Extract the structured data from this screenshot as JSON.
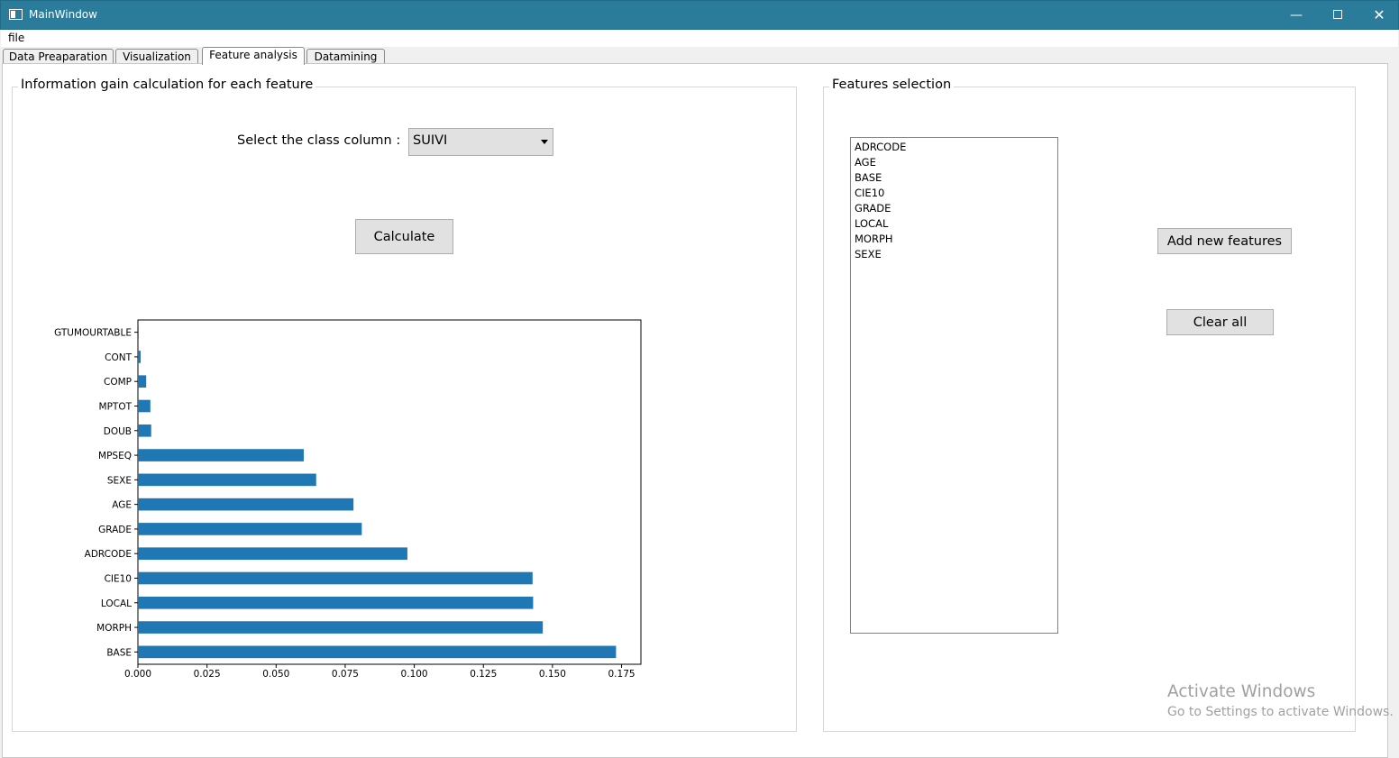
{
  "window": {
    "title": "MainWindow",
    "minimize_glyph": "—",
    "close_glyph": "✕"
  },
  "menubar": {
    "file_label": "file"
  },
  "tabs": [
    {
      "label": "Data Preaparation",
      "active": false
    },
    {
      "label": "Visualization",
      "active": false
    },
    {
      "label": "Feature analysis",
      "active": true
    },
    {
      "label": "Datamining",
      "active": false
    }
  ],
  "info_gain_group": {
    "title": "Information gain calculation for each feature",
    "class_label": "Select the class column :",
    "class_value": "SUIVI",
    "calculate_label": "Calculate"
  },
  "features_group": {
    "title": "Features selection",
    "items": [
      "ADRCODE",
      "AGE",
      "BASE",
      "CIE10",
      "GRADE",
      "LOCAL",
      "MORPH",
      "SEXE"
    ],
    "add_label": "Add new features",
    "clear_label": "Clear all"
  },
  "watermark": {
    "line1": "Activate Windows",
    "line2": "Go to Settings to activate Windows."
  },
  "colors": {
    "bar": "#1f77b4",
    "titlebar": "#2b7b9b"
  },
  "chart_data": {
    "type": "bar",
    "orientation": "horizontal",
    "title": "",
    "xlabel": "",
    "ylabel": "",
    "xlim": [
      0,
      0.182
    ],
    "xticks": [
      "0.000",
      "0.025",
      "0.050",
      "0.075",
      "0.100",
      "0.125",
      "0.150",
      "0.175"
    ],
    "categories": [
      "BASE",
      "MORPH",
      "LOCAL",
      "CIE10",
      "ADRCODE",
      "GRADE",
      "AGE",
      "SEXE",
      "MPSEQ",
      "DOUB",
      "MPTOT",
      "COMP",
      "CONT",
      "GTUMOURTABLE"
    ],
    "values": [
      0.173,
      0.1465,
      0.143,
      0.1428,
      0.0975,
      0.081,
      0.078,
      0.0645,
      0.06,
      0.0048,
      0.0045,
      0.003,
      0.001,
      0.0003
    ],
    "grid": false,
    "legend": "none"
  }
}
